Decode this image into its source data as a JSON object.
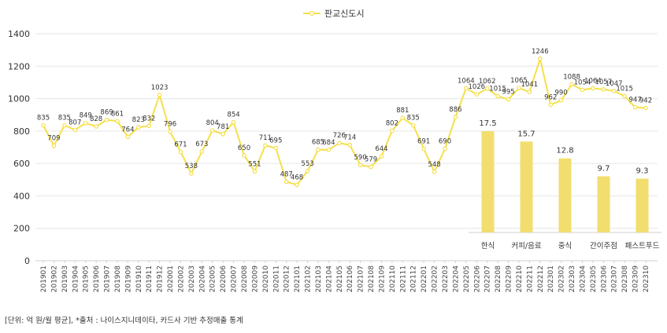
{
  "footnote": "[단위: 억 원/월 평균], *출처 : 나이스지니데이타, 카드사 기반 추정매출 통계",
  "chart_data": [
    {
      "type": "line",
      "title": "",
      "xlabel": "",
      "ylabel": "",
      "ylim": [
        0,
        1400
      ],
      "yticks": [
        0,
        200,
        400,
        600,
        800,
        1000,
        1200,
        1400
      ],
      "grid": true,
      "legend": "top-center",
      "color": "#F5E04B",
      "x": [
        "201901",
        "201902",
        "201903",
        "201904",
        "201905",
        "201906",
        "201907",
        "201908",
        "201909",
        "201910",
        "201911",
        "201912",
        "202001",
        "202002",
        "202003",
        "202004",
        "202005",
        "202006",
        "202007",
        "202008",
        "202009",
        "202010",
        "202011",
        "202012",
        "202101",
        "202102",
        "202103",
        "202104",
        "202105",
        "202106",
        "202107",
        "202108",
        "202109",
        "202110",
        "202111",
        "202112",
        "202201",
        "202202",
        "202203",
        "202204",
        "202205",
        "202206",
        "202207",
        "202208",
        "202209",
        "202210",
        "202211",
        "202212",
        "202301",
        "202302",
        "202303",
        "202304",
        "202305",
        "202306",
        "202307",
        "202308",
        "202309",
        "202310"
      ],
      "series": [
        {
          "name": "판교신도시",
          "values": [
            835,
            709,
            835,
            807,
            849,
            828,
            869,
            861,
            764,
            823,
            832,
            1023,
            796,
            671,
            538,
            673,
            804,
            781,
            854,
            650,
            551,
            711,
            695,
            487,
            468,
            553,
            685,
            684,
            726,
            714,
            590,
            579,
            644,
            802,
            881,
            835,
            691,
            548,
            690,
            886,
            1064,
            1026,
            1062,
            1015,
            995,
            1065,
            1041,
            1246,
            962,
            990,
            1088,
            1054,
            1064,
            1057,
            1047,
            1015,
            947,
            942
          ]
        }
      ]
    },
    {
      "type": "bar",
      "title": "",
      "categories": [
        "한식",
        "커피/음료",
        "중식",
        "간이주점",
        "패스트푸드"
      ],
      "values": [
        17.5,
        15.7,
        12.8,
        9.7,
        9.3
      ],
      "color": "#F2DE6E"
    }
  ]
}
